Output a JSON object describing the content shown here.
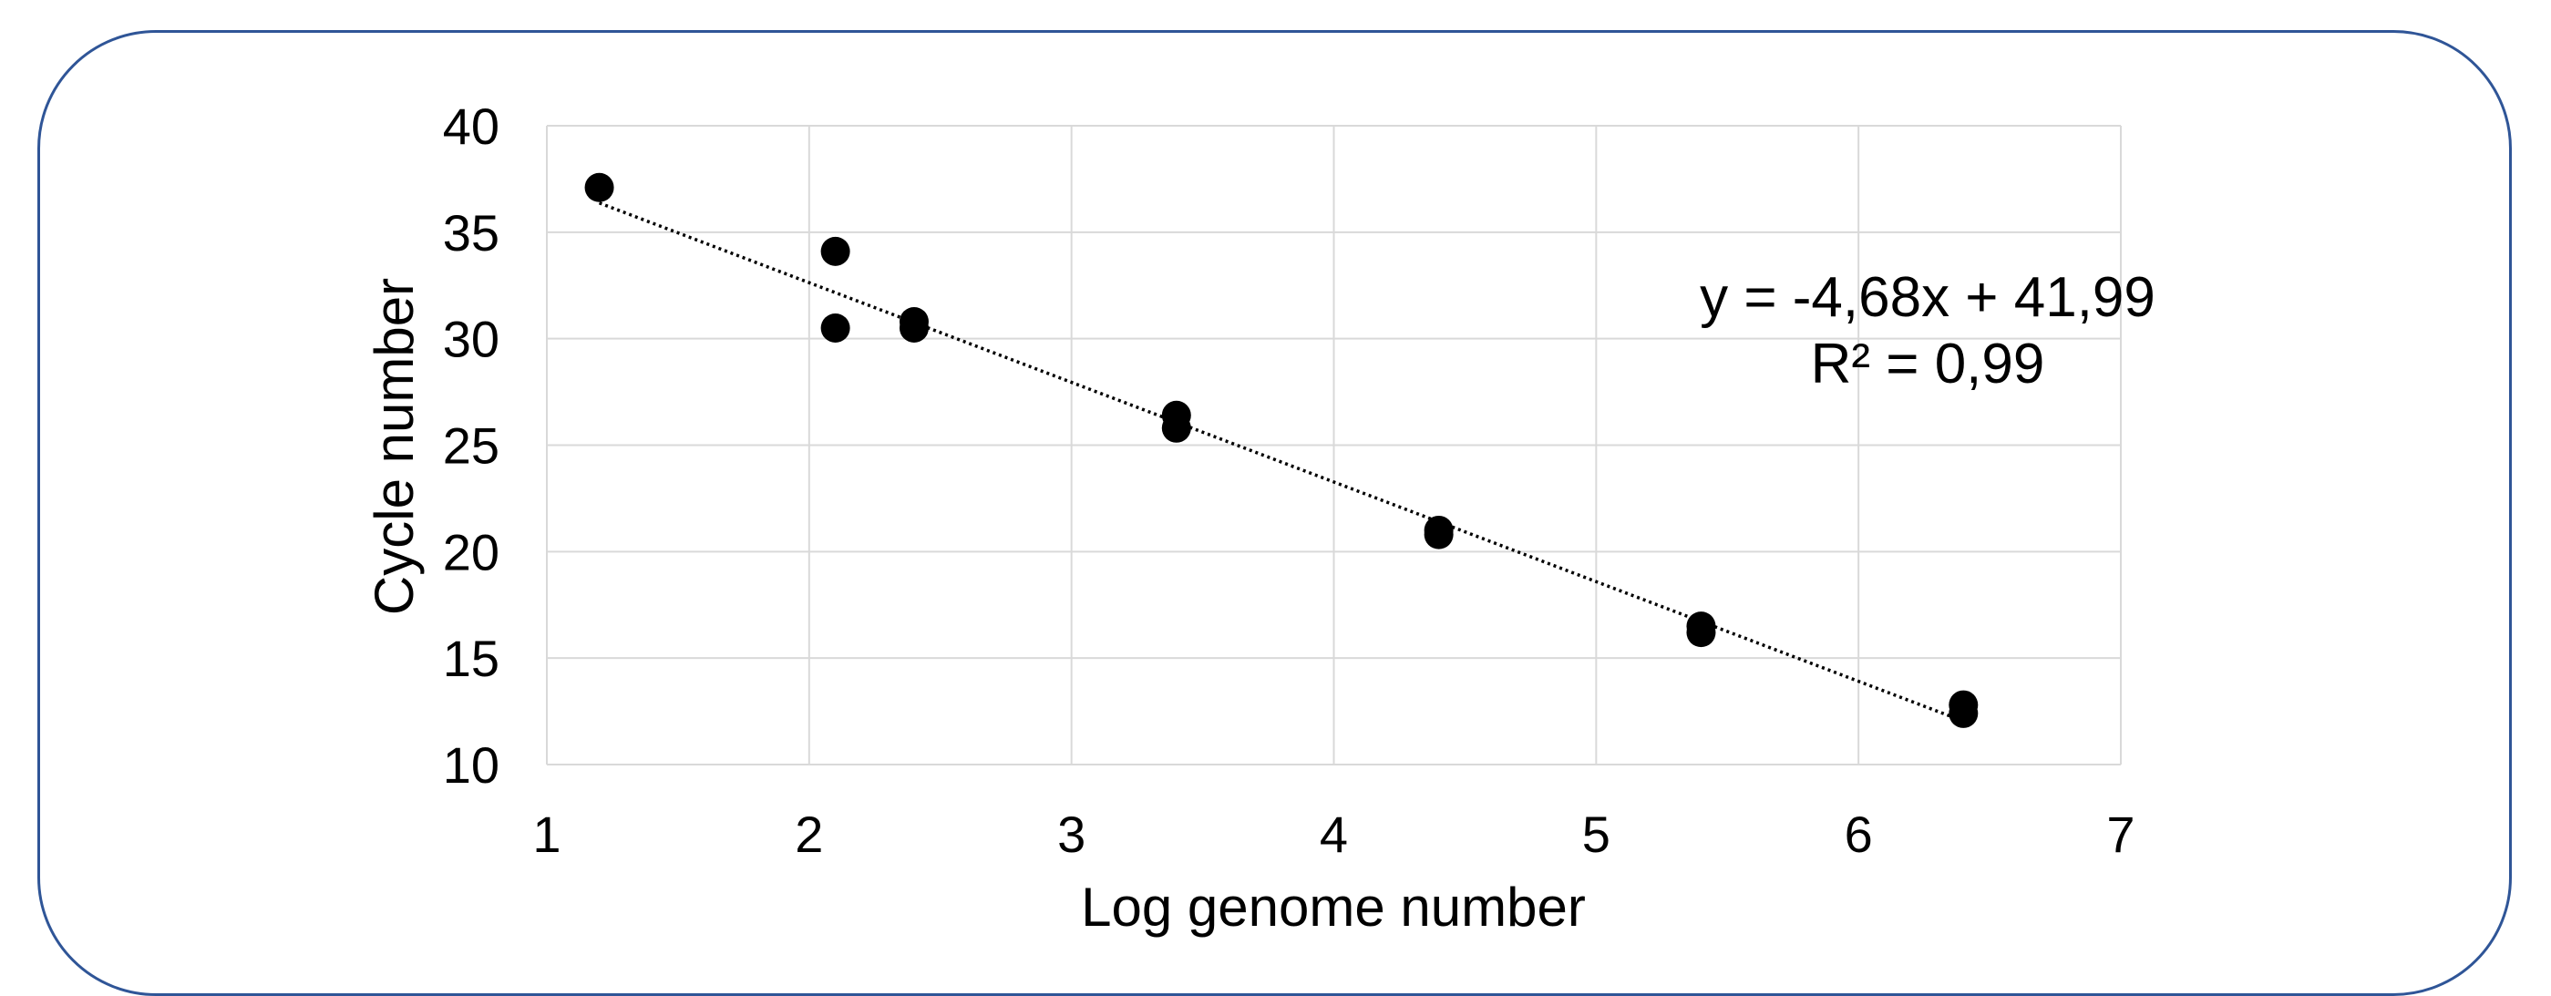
{
  "chart_data": {
    "type": "scatter",
    "title": "",
    "xlabel": "Log genome number",
    "ylabel": "Cycle number",
    "xlim": [
      1,
      7
    ],
    "ylim": [
      10,
      40
    ],
    "xticks": [
      "1",
      "2",
      "3",
      "4",
      "5",
      "6",
      "7"
    ],
    "yticks": [
      "10",
      "15",
      "20",
      "25",
      "30",
      "35",
      "40"
    ],
    "grid": true,
    "points": [
      {
        "x": 1.2,
        "y": 37.1
      },
      {
        "x": 2.1,
        "y": 34.1
      },
      {
        "x": 2.1,
        "y": 30.5
      },
      {
        "x": 2.4,
        "y": 30.8
      },
      {
        "x": 2.4,
        "y": 30.5
      },
      {
        "x": 3.4,
        "y": 26.4
      },
      {
        "x": 3.4,
        "y": 25.8
      },
      {
        "x": 4.4,
        "y": 21.0
      },
      {
        "x": 4.4,
        "y": 20.8
      },
      {
        "x": 5.4,
        "y": 16.5
      },
      {
        "x": 5.4,
        "y": 16.2
      },
      {
        "x": 6.4,
        "y": 12.8
      },
      {
        "x": 6.4,
        "y": 12.4
      }
    ],
    "trendline": {
      "type": "linear",
      "slope": -4.68,
      "intercept": 41.99,
      "x_range": [
        1.2,
        6.4
      ],
      "style": "dotted"
    },
    "annotations": [
      "y = -4,68x + 41,99",
      "R² = 0,99"
    ],
    "colors": {
      "points": "#000000",
      "grid": "#d9d9d9",
      "frame": "#2f5597"
    }
  }
}
